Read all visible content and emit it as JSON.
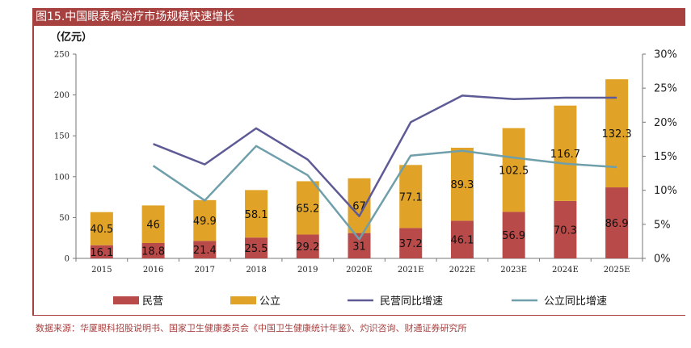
{
  "title": "图15.中国眼表病治疗市场规模快速增长",
  "source": "数据来源：华厦眼科招股说明书、国家卫生健康委员会《中国卫生健康统计年鉴》、灼识咨询、财通证券研究所",
  "colors": {
    "title_bg": "#a6413f",
    "private_bar": "#b84a49",
    "public_bar": "#e0a227",
    "private_line": "#5e5a96",
    "public_line": "#6f9fab"
  },
  "chart_data": {
    "type": "bar",
    "stacked": true,
    "unit_label": "（亿元）",
    "categories": [
      "2015",
      "2016",
      "2017",
      "2018",
      "2019",
      "2020E",
      "2021E",
      "2022E",
      "2023E",
      "2024E",
      "2025E"
    ],
    "series": [
      {
        "name": "民营",
        "axis": "left",
        "type": "bar",
        "values": [
          16.1,
          18.8,
          21.4,
          25.5,
          29.2,
          31,
          37.2,
          46.1,
          56.9,
          70.3,
          86.9
        ]
      },
      {
        "name": "公立",
        "axis": "left",
        "type": "bar",
        "values": [
          40.5,
          46,
          49.9,
          58.1,
          65.2,
          67,
          77.1,
          89.3,
          102.5,
          116.7,
          132.3
        ]
      },
      {
        "name": "民营同比增速",
        "axis": "right",
        "type": "line",
        "values": [
          null,
          16.8,
          13.8,
          19.1,
          14.5,
          6.2,
          20.0,
          23.9,
          23.4,
          23.6,
          23.6
        ]
      },
      {
        "name": "公立同比增速",
        "axis": "right",
        "type": "line",
        "values": [
          null,
          13.6,
          8.5,
          16.5,
          12.2,
          2.8,
          15.1,
          15.8,
          14.8,
          13.9,
          13.4
        ]
      }
    ],
    "y_left": {
      "range": [
        0,
        250
      ],
      "ticks": [
        "0",
        "50",
        "100",
        "150",
        "200",
        "250"
      ]
    },
    "y_right": {
      "range": [
        0,
        30
      ],
      "ticks": [
        "0%",
        "5%",
        "10%",
        "15%",
        "20%",
        "25%",
        "30%"
      ]
    },
    "legend": {
      "position": "bottom",
      "items": [
        "民营",
        "公立",
        "民营同比增速",
        "公立同比增速"
      ]
    },
    "grid": false
  }
}
